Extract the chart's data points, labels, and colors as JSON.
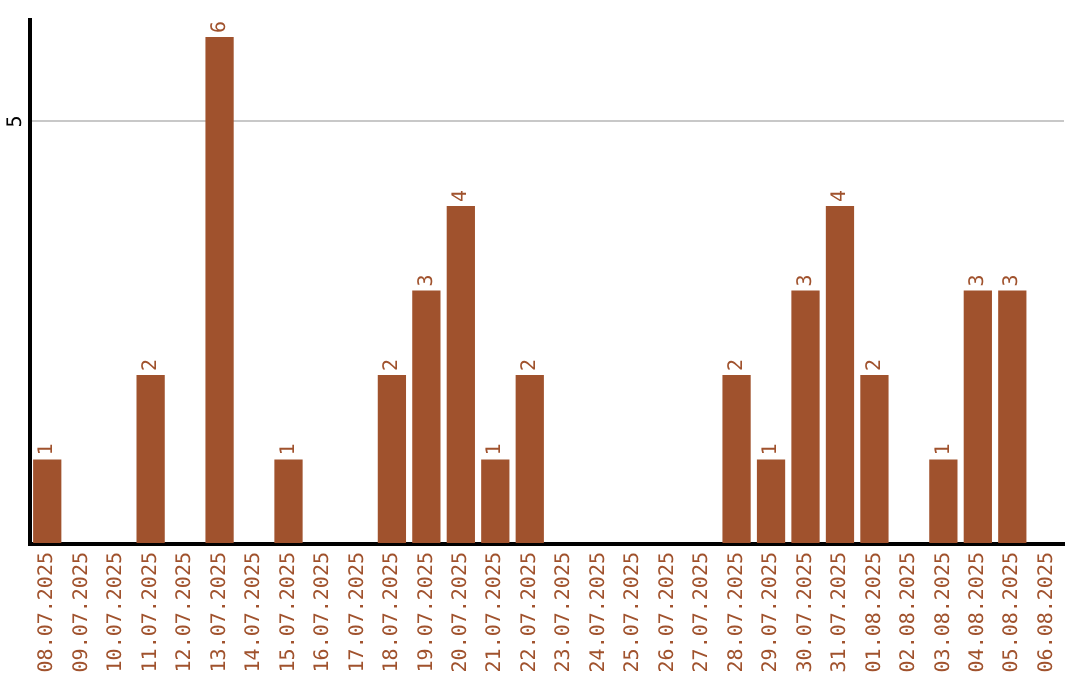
{
  "chart_data": {
    "type": "bar",
    "categories": [
      "08.07.2025",
      "09.07.2025",
      "10.07.2025",
      "11.07.2025",
      "12.07.2025",
      "13.07.2025",
      "14.07.2025",
      "15.07.2025",
      "16.07.2025",
      "17.07.2025",
      "18.07.2025",
      "19.07.2025",
      "20.07.2025",
      "21.07.2025",
      "22.07.2025",
      "23.07.2025",
      "24.07.2025",
      "25.07.2025",
      "26.07.2025",
      "27.07.2025",
      "28.07.2025",
      "29.07.2025",
      "30.07.2025",
      "31.07.2025",
      "01.08.2025",
      "02.08.2025",
      "03.08.2025",
      "04.08.2025",
      "05.08.2025",
      "06.08.2025"
    ],
    "values": [
      1,
      0,
      0,
      2,
      0,
      6,
      0,
      1,
      0,
      0,
      2,
      3,
      4,
      1,
      2,
      0,
      0,
      0,
      0,
      0,
      2,
      1,
      3,
      4,
      2,
      0,
      1,
      3,
      3,
      0
    ],
    "value_labels": [
      "1",
      null,
      null,
      "2",
      null,
      "6",
      null,
      "1",
      null,
      null,
      "2",
      "3",
      "4",
      "1",
      "2",
      null,
      null,
      null,
      null,
      null,
      "2",
      "1",
      "3",
      "4",
      "2",
      null,
      "1",
      "3",
      "3",
      null
    ],
    "color": "#a0522d",
    "ylim": [
      0,
      6.2
    ],
    "yticks": [
      {
        "value": 0,
        "label": null
      },
      5
    ],
    "grid": "y",
    "legend": false
  }
}
